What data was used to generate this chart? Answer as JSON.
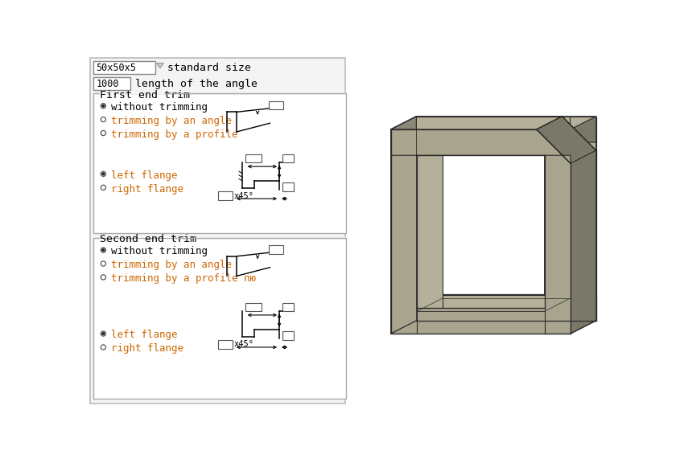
{
  "bg_color": "#ffffff",
  "border_color": "#aaaaaa",
  "text_color": "#000000",
  "blue_text": "#cc6600",
  "size_box_text": "50x50x5",
  "size_label": "standard size",
  "length_box_text": "1000",
  "length_label": "length of the angle",
  "first_trim_label": "First end trim",
  "second_trim_label": "Second end trim",
  "radio_options_1": [
    "without trimming",
    "trimming by an angle",
    "trimming by a profile"
  ],
  "radio_options_2": [
    "without trimming",
    "trimming by an angle",
    "trimming by a profile пю"
  ],
  "flange_options": [
    "left flange",
    "right flange"
  ],
  "metal_color_top": "#b5b09a",
  "metal_color_front": "#a8a48e",
  "metal_color_side": "#8a8778",
  "metal_color_dark": "#7a7868",
  "metal_color_inner": "#c2be aa",
  "metal_edge": "#2a2a2a",
  "panel_bg": "#f4f4f4"
}
